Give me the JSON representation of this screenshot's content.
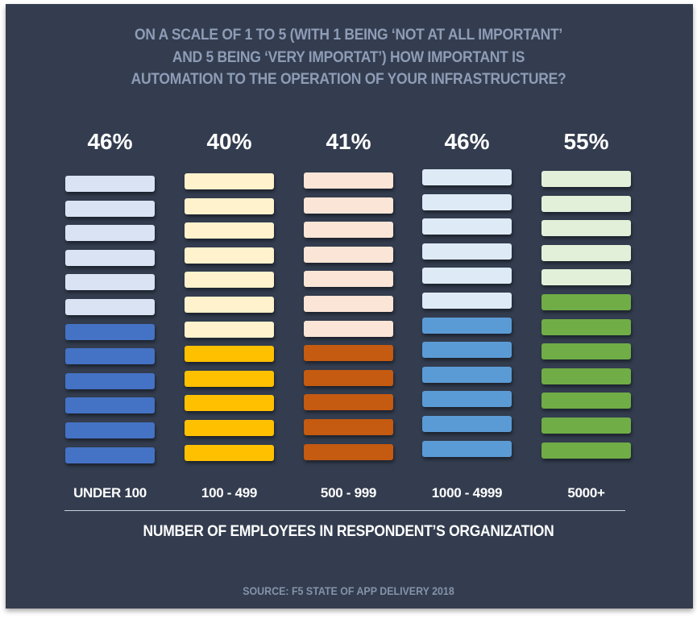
{
  "chart_data": {
    "type": "bar",
    "title": "ON A SCALE OF 1 TO 5 (WITH 1 BEING ‘NOT AT ALL IMPORTANT’ AND 5 BEING ‘VERY IMPORTAT’) HOW IMPORTANT IS AUTOMATION TO THE OPERATION OF YOUR INFRASTRUCTURE?",
    "title_lines": [
      "ON A SCALE OF 1 TO 5 (WITH 1 BEING ‘NOT AT ALL IMPORTANT’",
      "AND 5 BEING ‘VERY IMPORTAT’) HOW IMPORTANT IS",
      "AUTOMATION TO THE OPERATION OF YOUR INFRASTRUCTURE?"
    ],
    "xlabel": "NUMBER OF EMPLOYEES IN RESPONDENT’S ORGANIZATION",
    "source": "SOURCE: F5 STATE OF APP DELIVERY 2018",
    "categories": [
      "UNDER 100",
      "100 - 499",
      "500 - 999",
      "1000 - 4999",
      "5000+"
    ],
    "values": [
      46,
      40,
      41,
      46,
      55
    ],
    "value_labels": [
      "46%",
      "40%",
      "41%",
      "46%",
      "55%"
    ],
    "total_bars": 12,
    "filled_bars": [
      6,
      5,
      5,
      6,
      7
    ],
    "colors": [
      {
        "filled": "#4472c4",
        "empty": "#dae3f3"
      },
      {
        "filled": "#ffc000",
        "empty": "#fff2cc"
      },
      {
        "filled": "#c55a11",
        "empty": "#fbe5d6"
      },
      {
        "filled": "#5b9bd5",
        "empty": "#deebf7"
      },
      {
        "filled": "#70ad47",
        "empty": "#e2f0d9"
      }
    ],
    "background": "#333d4f",
    "grid": false
  }
}
